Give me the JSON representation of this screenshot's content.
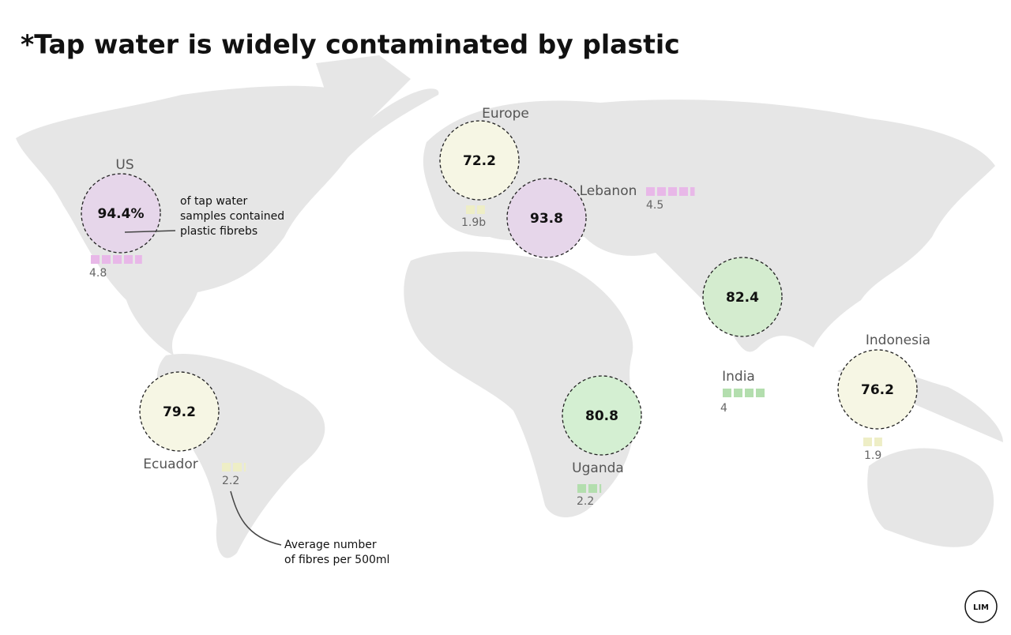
{
  "title": "*Tap water is widely contaminated by plastic",
  "regions": [
    {
      "name": "US",
      "share": "94.4%",
      "fibres": 4.8,
      "color": "#e6d6ea",
      "square_color": "#e8b8e8"
    },
    {
      "name": "Europe",
      "share": "72.2",
      "fibres": {
        "value": 1.9,
        "label": "1.9b"
      },
      "color": "#f6f6e4",
      "square_color": "#eeeec6"
    },
    {
      "name": "Lebanon",
      "share": "93.8",
      "fibres": 4.5,
      "color": "#e6d6ea",
      "square_color": "#e8b8e8"
    },
    {
      "name": "India",
      "share": "82.4",
      "fibres": 4.0,
      "color": "#d4eccf",
      "square_color": "#b3deae"
    },
    {
      "name": "Indonesia",
      "share": "76.2",
      "fibres": 1.9,
      "color": "#f6f6e4",
      "square_color": "#eeeec6"
    },
    {
      "name": "Ecuador",
      "share": "79.2",
      "fibres": 2.2,
      "color": "#f6f6e4",
      "square_color": "#eeeec6"
    },
    {
      "name": "Uganda",
      "share": "80.8",
      "fibres": 2.2,
      "color": "#d4efd2",
      "square_color": "#b3deae"
    }
  ],
  "annotations": {
    "share_note": [
      "of tap water",
      "samples contained",
      "plastic fibrebs"
    ],
    "fibre_note": [
      "Average number",
      "of fibres per 500ml"
    ]
  },
  "logo": "LIM"
}
